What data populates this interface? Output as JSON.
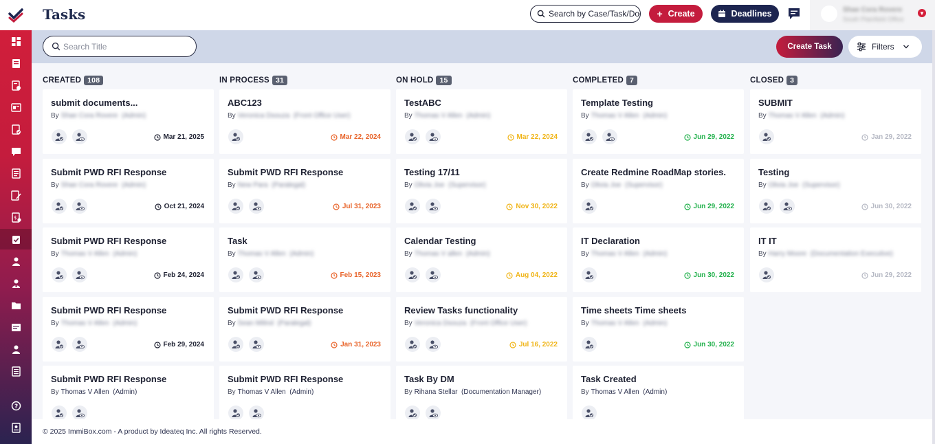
{
  "app": {
    "page_title": "Tasks",
    "brand_color": "#c41c3d",
    "navy_color": "#1d2550"
  },
  "header": {
    "search_placeholder": "Search by Case/Task/Docu",
    "create_label": "Create",
    "deadlines_label": "Deadlines",
    "user_name": "Shae Cora Rovere",
    "user_office": "South Plainfield Office"
  },
  "toolbar": {
    "title_search_placeholder": "Search Title",
    "create_task_label": "Create Task",
    "filters_label": "Filters"
  },
  "columns": [
    {
      "name": "CREATED",
      "count": "108",
      "date_color": "#1f2233",
      "cards": [
        {
          "title": "submit documents...",
          "by_label": "By",
          "by": "Shae Cora Rovere  (Admin)",
          "by_blurred": true,
          "date": "Mar 21, 2025",
          "icons": 2
        },
        {
          "title": "Submit PWD RFI Response",
          "by_label": "By",
          "by": "Shae Cora Rovere  (Admin)",
          "by_blurred": true,
          "date": "Oct 21, 2024",
          "icons": 2
        },
        {
          "title": "Submit PWD RFI Response",
          "by_label": "By",
          "by": "Thomas V Allen  (Admin)",
          "by_blurred": true,
          "date": "Feb 24, 2024",
          "icons": 2
        },
        {
          "title": "Submit PWD RFI Response",
          "by_label": "By",
          "by": "Thomas V Allen  (Admin)",
          "by_blurred": true,
          "date": "Feb 29, 2024",
          "icons": 2
        },
        {
          "title": "Submit PWD RFI Response",
          "by_label": "By",
          "by": "Thomas V Allen  (Admin)",
          "by_blurred": false,
          "date": "",
          "icons": 2
        }
      ]
    },
    {
      "name": "IN PROCESS",
      "count": "31",
      "date_color": "#e8642a",
      "cards": [
        {
          "title": "ABC123",
          "by_label": "By",
          "by": "Veronica Dsouza  (Front Office User)",
          "by_blurred": true,
          "date": "Mar 22, 2024",
          "icons": 1
        },
        {
          "title": "Submit PWD RFI Response",
          "by_label": "By",
          "by": "New Para  (Paralegal)",
          "by_blurred": true,
          "date": "Jul 31, 2023",
          "icons": 2
        },
        {
          "title": "Task",
          "by_label": "By",
          "by": "Thomas V Allen  (Admin)",
          "by_blurred": true,
          "date": "Feb 15, 2023",
          "icons": 2
        },
        {
          "title": "Submit PWD RFI Response",
          "by_label": "By",
          "by": "Sean Milind  (Paralegal)",
          "by_blurred": true,
          "date": "Jan 31, 2023",
          "icons": 2
        },
        {
          "title": "Submit PWD RFI Response",
          "by_label": "By",
          "by": "Thomas V Allen  (Admin)",
          "by_blurred": false,
          "date": "",
          "icons": 2
        }
      ]
    },
    {
      "name": "ON HOLD",
      "count": "15",
      "date_color": "#f0b416",
      "cards": [
        {
          "title": "TestABC",
          "by_label": "By",
          "by": "Thomas V Allen  (Admin)",
          "by_blurred": true,
          "date": "Mar 22, 2024",
          "icons": 2
        },
        {
          "title": "Testing 17/11",
          "by_label": "By",
          "by": "Olivia Joe  (Supervisor)",
          "by_blurred": true,
          "date": "Nov 30, 2022",
          "icons": 2
        },
        {
          "title": "Calendar Testing",
          "by_label": "By",
          "by": "Thomas V allen  (Admin)",
          "by_blurred": true,
          "date": "Aug 04, 2022",
          "icons": 2
        },
        {
          "title": "Review Tasks functionality",
          "by_label": "By",
          "by": "Veronica Dsouza  (Front Office User)",
          "by_blurred": true,
          "date": "Jul 16, 2022",
          "icons": 2
        },
        {
          "title": "Task By DM",
          "by_label": "By",
          "by": "Rihana Stellar  (Documentation Manager)",
          "by_blurred": false,
          "date": "",
          "icons": 2
        }
      ]
    },
    {
      "name": "COMPLETED",
      "count": "7",
      "date_color": "#22b14c",
      "cards": [
        {
          "title": "Template Testing",
          "by_label": "By",
          "by": "Thomas V Allen  (Admin)",
          "by_blurred": true,
          "date": "Jun 29, 2022",
          "icons": 2
        },
        {
          "title": "Create Redmine RoadMap stories.",
          "by_label": "By",
          "by": "Olivia Joe  (Supervisor)",
          "by_blurred": true,
          "date": "Jun 29, 2022",
          "icons": 1
        },
        {
          "title": "IT Declaration",
          "by_label": "By",
          "by": "Thomas V Allen  (Admin)",
          "by_blurred": true,
          "date": "Jun 30, 2022",
          "icons": 1
        },
        {
          "title": "Time sheets Time sheets",
          "by_label": "By",
          "by": "Thomas V Allen  (Admin)",
          "by_blurred": true,
          "date": "Jun 30, 2022",
          "icons": 1
        },
        {
          "title": "Task Created",
          "by_label": "By",
          "by": "Thomas V Allen  (Admin)",
          "by_blurred": false,
          "date": "",
          "icons": 1
        }
      ]
    },
    {
      "name": "CLOSED",
      "count": "3",
      "date_color": "#b6b9c4",
      "cards": [
        {
          "title": "SUBMIT",
          "by_label": "By",
          "by": "Thomas V Allen  (Admin)",
          "by_blurred": true,
          "date": "Jan 29, 2022",
          "icons": 1
        },
        {
          "title": "Testing",
          "by_label": "By",
          "by": "Olivia Joe  (Supervisor)",
          "by_blurred": true,
          "date": "Jun 30, 2022",
          "icons": 2
        },
        {
          "title": "IT IT",
          "by_label": "By",
          "by": "Harry Moore  (Documentation Executive)",
          "by_blurred": true,
          "date": "Jun 29, 2022",
          "icons": 1
        }
      ]
    }
  ],
  "sidebar": {
    "icons": [
      "dashboard-icon",
      "contacts-book-icon",
      "case-file-icon",
      "case-status-icon",
      "document-check-icon",
      "messages-icon",
      "notes-icon",
      "forms-icon",
      "invoice-icon",
      "tasks-icon",
      "client-icon",
      "user-icon",
      "folder-icon",
      "reports-icon",
      "team-icon",
      "ledger-icon"
    ],
    "bottom_icons": [
      "help-icon",
      "knowledge-base-icon"
    ]
  },
  "footer": {
    "copyright": "© 2025 ImmiBox.com - A product by Ideateq Inc. All rights Reserved."
  }
}
